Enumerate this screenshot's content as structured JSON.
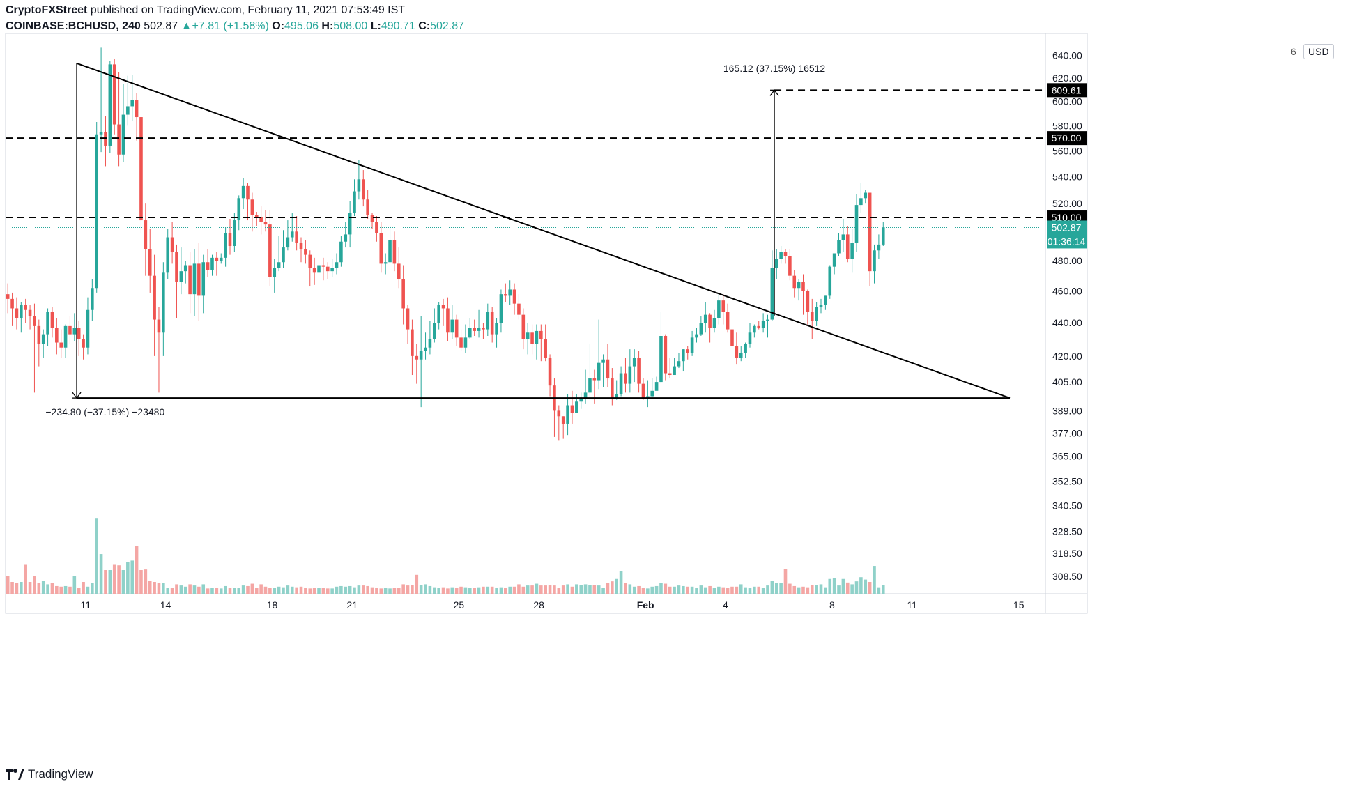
{
  "header": {
    "publisher": "CryptoFXStreet",
    "published_text": " published on TradingView.com, February 11, 2021 07:53:49 IST",
    "symbol": "COINBASE:BCHUSD, 240",
    "last": "502.87",
    "change": "+7.81 (+1.58%)",
    "o_label": "O:",
    "o": "495.06",
    "h_label": "H:",
    "h": "508.00",
    "l_label": "L:",
    "l": "490.71",
    "c_label": "C:",
    "c": "502.87"
  },
  "footer": {
    "brand": "TradingView",
    "logo_icon": "tradingview-logo-icon"
  },
  "axis": {
    "unit": "USD",
    "gear_stub": "6"
  },
  "colors": {
    "up": "#26a69a",
    "down": "#ef5350",
    "up_vol": "#8fd1c9",
    "down_vol": "#f4a6a4",
    "line": "#000000"
  },
  "chart_data": {
    "type": "candlestick",
    "y_scale": "log",
    "y_range": [
      301,
      660
    ],
    "y_ticks": [
      640.0,
      620.0,
      600.0,
      580.0,
      560.0,
      540.0,
      520.0,
      480.0,
      460.0,
      440.0,
      420.0,
      405.0,
      389.0,
      377.0,
      365.0,
      352.5,
      340.5,
      328.5,
      318.5,
      308.5
    ],
    "x_range_days": [
      "2021-01-08",
      "2021-02-16"
    ],
    "x_ticks": [
      {
        "label": "11",
        "date": "2021-01-11"
      },
      {
        "label": "14",
        "date": "2021-01-14"
      },
      {
        "label": "18",
        "date": "2021-01-18"
      },
      {
        "label": "21",
        "date": "2021-01-21"
      },
      {
        "label": "25",
        "date": "2021-01-25"
      },
      {
        "label": "28",
        "date": "2021-01-28"
      },
      {
        "label": "Feb",
        "date": "2021-02-01"
      },
      {
        "label": "4",
        "date": "2021-02-04"
      },
      {
        "label": "8",
        "date": "2021-02-08"
      },
      {
        "label": "11",
        "date": "2021-02-11"
      },
      {
        "label": "15",
        "date": "2021-02-15"
      }
    ],
    "price_levels": [
      {
        "label": "609.61",
        "value": 609.61,
        "style": "dashed",
        "start_date": "2021-02-05 20:00"
      },
      {
        "label": "570.00",
        "value": 570.0,
        "style": "dashed"
      },
      {
        "label": "510.00",
        "value": 510.0,
        "style": "dashed"
      }
    ],
    "current_price": {
      "label": "502.87",
      "value": 502.87,
      "countdown": "01:36:14"
    },
    "trendlines": [
      {
        "name": "descending-trendline",
        "from": [
          "2021-01-10 16:00",
          633
        ],
        "to": [
          "2021-02-14 16:00",
          396
        ]
      },
      {
        "name": "base-support",
        "from": [
          "2021-01-10 16:00",
          396
        ],
        "to": [
          "2021-02-14 16:00",
          396
        ]
      }
    ],
    "measures": [
      {
        "text": "−234.80  (−37.15%)  −23480",
        "from": [
          "2021-01-10 16:00",
          633
        ],
        "to": [
          "2021-01-10 16:00",
          396
        ],
        "label_at": [
          "2021-01-09 12:00",
          388
        ]
      },
      {
        "text": "165.12  (37.15%)  16512",
        "from": [
          "2021-02-05 20:00",
          444.5
        ],
        "to": [
          "2021-02-05 20:00",
          609.61
        ],
        "label_at": [
          "2021-02-05 20:00",
          628
        ]
      }
    ],
    "candles_start": "2021-01-08 00:00",
    "candle_hours": 4,
    "candles": [
      [
        458,
        455,
        465,
        446
      ],
      [
        455,
        449,
        459,
        438
      ],
      [
        449,
        443,
        456,
        436
      ],
      [
        443,
        451,
        453,
        434
      ],
      [
        451,
        448,
        455,
        440
      ],
      [
        448,
        444,
        451,
        436
      ],
      [
        444,
        438,
        452,
        399
      ],
      [
        438,
        427,
        442,
        414
      ],
      [
        427,
        433,
        436,
        419
      ],
      [
        433,
        447,
        449,
        426
      ],
      [
        447,
        437,
        450,
        431
      ],
      [
        437,
        428,
        443,
        421
      ],
      [
        428,
        425,
        436,
        419
      ],
      [
        425,
        438,
        439,
        419
      ],
      [
        438,
        433,
        444,
        427
      ],
      [
        433,
        437,
        446,
        429
      ],
      [
        437,
        430,
        441,
        420
      ],
      [
        430,
        425,
        433,
        418
      ],
      [
        425,
        448,
        456,
        421
      ],
      [
        448,
        462,
        468,
        441
      ],
      [
        462,
        573,
        583,
        459
      ],
      [
        573,
        575,
        647,
        559
      ],
      [
        575,
        564,
        588,
        548
      ],
      [
        564,
        632,
        635,
        558
      ],
      [
        632,
        581,
        637,
        573
      ],
      [
        581,
        557,
        625,
        548
      ],
      [
        557,
        589,
        615,
        551
      ],
      [
        589,
        596,
        622,
        580
      ],
      [
        596,
        601,
        623,
        584
      ],
      [
        601,
        587,
        607,
        568
      ],
      [
        587,
        508,
        585,
        499
      ],
      [
        508,
        488,
        520,
        470
      ],
      [
        488,
        470,
        502,
        459
      ],
      [
        470,
        442,
        484,
        420
      ],
      [
        442,
        434,
        450,
        399
      ],
      [
        434,
        472,
        479,
        420
      ],
      [
        472,
        496,
        502,
        468
      ],
      [
        496,
        486,
        507,
        478
      ],
      [
        486,
        466,
        491,
        443
      ],
      [
        466,
        473,
        489,
        458
      ],
      [
        473,
        477,
        480,
        465
      ],
      [
        477,
        458,
        486,
        446
      ],
      [
        458,
        478,
        488,
        444
      ],
      [
        478,
        457,
        492,
        441
      ],
      [
        457,
        479,
        484,
        446
      ],
      [
        479,
        474,
        488,
        469
      ],
      [
        474,
        482,
        484,
        470
      ],
      [
        482,
        480,
        486,
        470
      ],
      [
        480,
        482,
        485,
        478
      ],
      [
        482,
        499,
        503,
        476
      ],
      [
        499,
        490,
        509,
        484
      ],
      [
        490,
        508,
        513,
        486
      ],
      [
        508,
        524,
        526,
        501
      ],
      [
        524,
        533,
        539,
        516
      ],
      [
        533,
        523,
        535,
        508
      ],
      [
        523,
        512,
        528,
        500
      ],
      [
        512,
        510,
        514,
        504
      ],
      [
        510,
        507,
        518,
        498
      ],
      [
        507,
        505,
        515,
        500
      ],
      [
        505,
        469,
        515,
        463
      ],
      [
        469,
        475,
        481,
        459
      ],
      [
        475,
        479,
        497,
        473
      ],
      [
        479,
        489,
        501,
        475
      ],
      [
        489,
        496,
        508,
        487
      ],
      [
        496,
        500,
        513,
        493
      ],
      [
        500,
        492,
        511,
        487
      ],
      [
        492,
        488,
        496,
        479
      ],
      [
        488,
        484,
        494,
        478
      ],
      [
        484,
        475,
        487,
        463
      ],
      [
        475,
        472,
        482,
        464
      ],
      [
        472,
        477,
        482,
        467
      ],
      [
        477,
        476,
        482,
        467
      ],
      [
        476,
        473,
        479,
        468
      ],
      [
        473,
        475,
        481,
        469
      ],
      [
        475,
        479,
        485,
        471
      ],
      [
        479,
        493,
        497,
        476
      ],
      [
        493,
        498,
        507,
        489
      ],
      [
        498,
        513,
        522,
        489
      ],
      [
        513,
        529,
        538,
        511
      ],
      [
        529,
        538,
        553,
        523
      ],
      [
        538,
        523,
        545,
        518
      ],
      [
        523,
        512,
        530,
        509
      ],
      [
        512,
        507,
        513,
        502
      ],
      [
        507,
        499,
        511,
        493
      ],
      [
        499,
        478,
        507,
        472
      ],
      [
        478,
        479,
        485,
        471
      ],
      [
        479,
        494,
        504,
        478
      ],
      [
        494,
        478,
        500,
        473
      ],
      [
        478,
        468,
        489,
        462
      ],
      [
        468,
        449,
        477,
        439
      ],
      [
        449,
        436,
        451,
        427
      ],
      [
        436,
        420,
        442,
        409
      ],
      [
        420,
        418,
        427,
        404
      ],
      [
        418,
        423,
        444,
        391
      ],
      [
        423,
        425,
        434,
        418
      ],
      [
        425,
        430,
        441,
        421
      ],
      [
        430,
        440,
        449,
        428
      ],
      [
        440,
        451,
        453,
        436
      ],
      [
        451,
        449,
        455,
        438
      ],
      [
        449,
        434,
        456,
        429
      ],
      [
        434,
        442,
        451,
        430
      ],
      [
        442,
        431,
        445,
        426
      ],
      [
        431,
        425,
        436,
        423
      ],
      [
        425,
        431,
        439,
        422
      ],
      [
        431,
        437,
        443,
        430
      ],
      [
        437,
        435,
        442,
        432
      ],
      [
        435,
        437,
        448,
        431
      ],
      [
        437,
        436,
        440,
        430
      ],
      [
        436,
        447,
        452,
        432
      ],
      [
        447,
        433,
        450,
        428
      ],
      [
        433,
        440,
        443,
        425
      ],
      [
        440,
        458,
        461,
        434
      ],
      [
        458,
        457,
        465,
        453
      ],
      [
        457,
        461,
        467,
        451
      ],
      [
        461,
        452,
        465,
        445
      ],
      [
        452,
        445,
        458,
        442
      ],
      [
        445,
        430,
        449,
        424
      ],
      [
        430,
        434,
        440,
        421
      ],
      [
        434,
        427,
        439,
        421
      ],
      [
        427,
        435,
        439,
        418
      ],
      [
        435,
        430,
        439,
        417
      ],
      [
        430,
        419,
        439,
        417
      ],
      [
        419,
        403,
        421,
        397
      ],
      [
        403,
        389,
        407,
        375
      ],
      [
        389,
        386,
        392,
        373
      ],
      [
        386,
        382,
        386,
        374
      ],
      [
        382,
        392,
        398,
        376
      ],
      [
        392,
        388,
        400,
        382
      ],
      [
        388,
        394,
        398,
        389
      ],
      [
        394,
        396,
        399,
        390
      ],
      [
        396,
        399,
        412,
        393
      ],
      [
        399,
        407,
        427,
        395
      ],
      [
        407,
        406,
        412,
        393
      ],
      [
        406,
        416,
        442,
        401
      ],
      [
        416,
        418,
        421,
        402
      ],
      [
        418,
        407,
        427,
        402
      ],
      [
        407,
        396,
        413,
        392
      ],
      [
        396,
        398,
        406,
        395
      ],
      [
        398,
        410,
        414,
        397
      ],
      [
        410,
        404,
        419,
        399
      ],
      [
        404,
        414,
        424,
        399
      ],
      [
        414,
        419,
        424,
        405
      ],
      [
        419,
        404,
        423,
        399
      ],
      [
        404,
        396,
        407,
        395
      ],
      [
        396,
        397,
        406,
        391
      ],
      [
        397,
        400,
        407,
        396
      ],
      [
        400,
        405,
        408,
        402
      ],
      [
        405,
        432,
        447,
        404
      ],
      [
        432,
        410,
        433,
        406
      ],
      [
        410,
        409,
        419,
        407
      ],
      [
        409,
        414,
        419,
        410
      ],
      [
        414,
        417,
        422,
        413
      ],
      [
        417,
        424,
        424,
        411
      ],
      [
        424,
        422,
        426,
        418
      ],
      [
        422,
        431,
        435,
        420
      ],
      [
        431,
        433,
        437,
        428
      ],
      [
        433,
        440,
        444,
        432
      ],
      [
        440,
        445,
        453,
        434
      ],
      [
        445,
        437,
        446,
        428
      ],
      [
        437,
        443,
        448,
        434
      ],
      [
        443,
        454,
        458,
        439
      ],
      [
        454,
        447,
        458,
        439
      ],
      [
        447,
        436,
        452,
        434
      ],
      [
        436,
        426,
        440,
        422
      ],
      [
        426,
        419,
        434,
        415
      ],
      [
        419,
        422,
        426,
        417
      ],
      [
        422,
        427,
        428,
        419
      ],
      [
        427,
        434,
        440,
        425
      ],
      [
        434,
        438,
        439,
        431
      ],
      [
        438,
        437,
        441,
        436
      ],
      [
        437,
        441,
        446,
        434
      ],
      [
        441,
        442,
        445,
        431
      ],
      [
        442,
        475,
        487,
        441
      ],
      [
        475,
        481,
        488,
        468
      ],
      [
        481,
        486,
        490,
        478
      ],
      [
        486,
        483,
        488,
        478
      ],
      [
        483,
        470,
        488,
        467
      ],
      [
        470,
        462,
        474,
        456
      ],
      [
        462,
        466,
        468,
        454
      ],
      [
        466,
        460,
        471,
        445
      ],
      [
        460,
        447,
        461,
        439
      ],
      [
        447,
        441,
        455,
        430
      ],
      [
        441,
        450,
        453,
        438
      ],
      [
        450,
        451,
        455,
        446
      ],
      [
        451,
        457,
        457,
        448
      ],
      [
        457,
        476,
        477,
        455
      ],
      [
        476,
        485,
        485,
        471
      ],
      [
        485,
        494,
        499,
        483
      ],
      [
        494,
        498,
        509,
        486
      ],
      [
        498,
        481,
        504,
        479
      ],
      [
        481,
        492,
        502,
        472
      ],
      [
        492,
        519,
        527,
        486
      ],
      [
        519,
        524,
        535,
        513
      ],
      [
        524,
        528,
        530,
        520
      ],
      [
        528,
        473,
        528,
        463
      ],
      [
        473,
        487,
        491,
        465
      ],
      [
        487,
        491,
        498,
        481
      ],
      [
        491,
        503,
        507,
        490
      ]
    ],
    "volumes": [
      30,
      20,
      18,
      20,
      50,
      20,
      30,
      18,
      22,
      16,
      18,
      13,
      12,
      13,
      12,
      30,
      10,
      20,
      12,
      18,
      128,
      67,
      40,
      40,
      50,
      48,
      40,
      54,
      56,
      80,
      40,
      41,
      22,
      20,
      18,
      18,
      10,
      10,
      16,
      14,
      12,
      16,
      14,
      12,
      16,
      9,
      10,
      10,
      9,
      13,
      10,
      10,
      10,
      14,
      13,
      17,
      10,
      16,
      12,
      10,
      10,
      12,
      11,
      14,
      12,
      11,
      12,
      10,
      9,
      10,
      10,
      10,
      9,
      9,
      12,
      13,
      12,
      13,
      11,
      14,
      14,
      13,
      11,
      10,
      9,
      10,
      9,
      10,
      10,
      16,
      14,
      15,
      32,
      15,
      16,
      13,
      11,
      10,
      11,
      9,
      11,
      10,
      12,
      11,
      10,
      10,
      11,
      12,
      12,
      12,
      10,
      11,
      10,
      12,
      12,
      16,
      12,
      14,
      14,
      17,
      14,
      14,
      15,
      14,
      10,
      14,
      16,
      12,
      16,
      15,
      16,
      15,
      15,
      14,
      10,
      18,
      21,
      25,
      38,
      18,
      16,
      12,
      13,
      10,
      9,
      12,
      13,
      18,
      17,
      12,
      12,
      14,
      13,
      12,
      12,
      10,
      14,
      11,
      13,
      10,
      12,
      11,
      10,
      12,
      12,
      16,
      11,
      10,
      12,
      12,
      10,
      14,
      22,
      18,
      18,
      42,
      17,
      13,
      11,
      12,
      11,
      15,
      15,
      16,
      11,
      25,
      26,
      14,
      25,
      19,
      16,
      21,
      28,
      24,
      20,
      47,
      11,
      15,
      10
    ]
  }
}
